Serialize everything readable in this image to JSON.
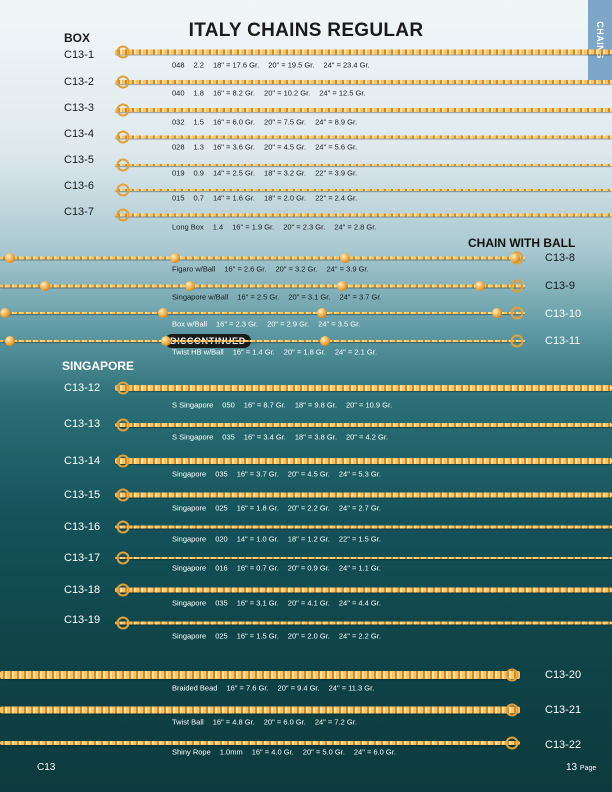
{
  "page_title": "ITALY CHAINS REGULAR",
  "side_tab": "CHAINS",
  "sections": {
    "box": "BOX",
    "chain_with_ball": "CHAIN WITH BALL",
    "singapore": "SINGAPORE"
  },
  "discontinued_badge": "DISCONTINUED",
  "items": [
    {
      "code": "C13-1",
      "spec": [
        "048",
        "2.2",
        "18\" = 17.6 Gr.",
        "20\" = 19.5 Gr.",
        "24\" = 23.4 Gr."
      ]
    },
    {
      "code": "C13-2",
      "spec": [
        "040",
        "1.8",
        "16\" = 8.2 Gr.",
        "20\" = 10.2 Gr.",
        "24\" = 12.5 Gr."
      ]
    },
    {
      "code": "C13-3",
      "spec": [
        "032",
        "1.5",
        "16\" = 6.0 Gr.",
        "20\" = 7.5 Gr.",
        "24\" = 8.9 Gr."
      ]
    },
    {
      "code": "C13-4",
      "spec": [
        "028",
        "1.3",
        "16\" = 3.6 Gr.",
        "20\" = 4.5 Gr.",
        "24\" = 5.6 Gr."
      ]
    },
    {
      "code": "C13-5",
      "spec": [
        "019",
        "0.9",
        "14\" = 2.5 Gr.",
        "18\" = 3.2 Gr.",
        "22\" = 3.9 Gr."
      ]
    },
    {
      "code": "C13-6",
      "spec": [
        "015",
        "0.7",
        "14\" = 1.6 Gr.",
        "18\" = 2.0 Gr.",
        "22\" = 2.4 Gr."
      ]
    },
    {
      "code": "C13-7",
      "spec": [
        "Long Box",
        "1.4",
        "16\" = 1.9 Gr.",
        "20\" = 2.3 Gr.",
        "24\" = 2.8 Gr."
      ]
    },
    {
      "code": "C13-8",
      "spec": [
        "Figaro w/Ball",
        "16\" = 2.6 Gr.",
        "20\" = 3.2 Gr.",
        "24\" = 3.9 Gr."
      ]
    },
    {
      "code": "C13-9",
      "spec": [
        "Singapore w/Ball",
        "16\" = 2.5 Gr.",
        "20\" = 3.1 Gr.",
        "24\" = 3.7 Gr."
      ]
    },
    {
      "code": "C13-10",
      "spec": [
        "Box w/Ball",
        "16\" = 2.3 Gr.",
        "20\" = 2.9 Gr.",
        "24\" = 3.5 Gr."
      ]
    },
    {
      "code": "C13-11",
      "spec": [
        "Twist HB w/Ball",
        "16\" = 1.4 Gr.",
        "20\" = 1.8 Gr.",
        "24\" = 2.1 Gr."
      ],
      "discontinued": true
    },
    {
      "code": "C13-12",
      "spec": [
        "S Singapore",
        "050",
        "16\" = 8.7 Gr.",
        "18\" = 9.8 Gr.",
        "20\" = 10.9 Gr."
      ]
    },
    {
      "code": "C13-13",
      "spec": [
        "S Singapore",
        "035",
        "16\" = 3.4 Gr.",
        "18\" = 3.8 Gr.",
        "20\" = 4.2 Gr."
      ]
    },
    {
      "code": "C13-14",
      "spec": [
        "Singapore",
        "035",
        "16\" = 3.7 Gr.",
        "20\" = 4.5 Gr.",
        "24\" = 5.3 Gr."
      ]
    },
    {
      "code": "C13-15",
      "spec": [
        "Singapore",
        "025",
        "16\" = 1.8 Gr.",
        "20\" = 2.2 Gr.",
        "24\" = 2.7 Gr."
      ]
    },
    {
      "code": "C13-16",
      "spec": [
        "Singapore",
        "020",
        "14\" = 1.0 Gr.",
        "18\" = 1.2 Gr.",
        "22\" = 1.5 Gr."
      ]
    },
    {
      "code": "C13-17",
      "spec": [
        "Singapore",
        "016",
        "16\" = 0.7 Gr.",
        "20\" = 0.9 Gr.",
        "24\" = 1.1 Gr."
      ]
    },
    {
      "code": "C13-18",
      "spec": [
        "Singapore",
        "035",
        "16\" = 3.1 Gr.",
        "20\" = 4.1 Gr.",
        "24\" = 4.4 Gr."
      ]
    },
    {
      "code": "C13-19",
      "spec": [
        "Singapore",
        "025",
        "16\" = 1.5 Gr.",
        "20\" = 2.0 Gr.",
        "24\" = 2.2 Gr."
      ]
    },
    {
      "code": "C13-20",
      "spec": [
        "Braided Bead",
        "16\" = 7.6 Gr.",
        "20\" = 9.4 Gr.",
        "24\" = 11.3 Gr."
      ]
    },
    {
      "code": "C13-21",
      "spec": [
        "Twist Ball",
        "16\" = 4.8 Gr.",
        "20\" = 6.0 Gr.",
        "24\" = 7.2 Gr."
      ]
    },
    {
      "code": "C13-22",
      "spec": [
        "Shiny Rope",
        "1.0mm",
        "16\" = 4.0 Gr.",
        "20\" = 5.0 Gr.",
        "24\" = 6.0 Gr."
      ]
    }
  ],
  "footer": {
    "left": "C13",
    "page_number": "13",
    "page_label": "Page"
  }
}
